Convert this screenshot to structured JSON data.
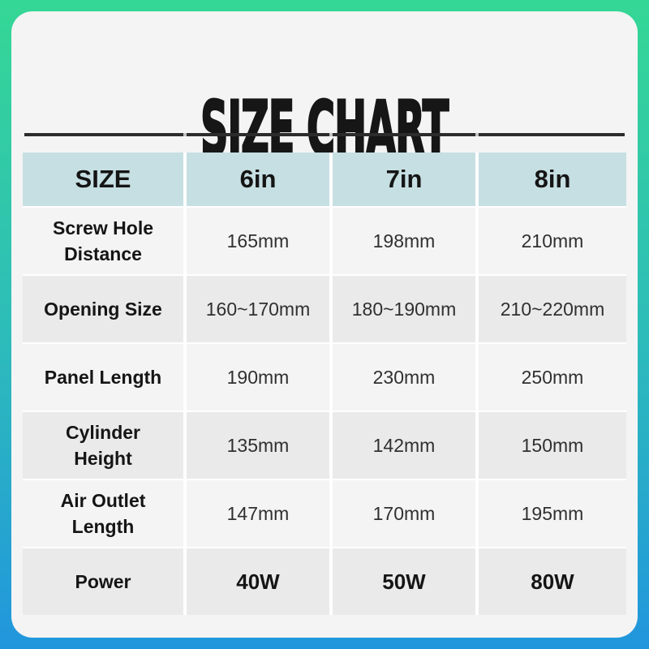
{
  "title": "SIZE CHART",
  "colors": {
    "border_top": "#35d795",
    "border_bottom": "#2196dd",
    "card_bg": "#f4f4f4",
    "header_bg": "#c6dfe2",
    "row_alt_bg": "#eaeaea",
    "divider_line": "#2c2c2c",
    "text": "#151515"
  },
  "chart_data": {
    "type": "table",
    "title": "SIZE CHART",
    "columns": [
      "SIZE",
      "6in",
      "7in",
      "8in"
    ],
    "rows": [
      {
        "label": "Screw Hole Distance",
        "values": [
          "165mm",
          "198mm",
          "210mm"
        ]
      },
      {
        "label": "Opening Size",
        "values": [
          "160~170mm",
          "180~190mm",
          "210~220mm"
        ]
      },
      {
        "label": "Panel Length",
        "values": [
          "190mm",
          "230mm",
          "250mm"
        ]
      },
      {
        "label": "Cylinder Height",
        "values": [
          "135mm",
          "142mm",
          "150mm"
        ]
      },
      {
        "label": "Air Outlet Length",
        "values": [
          "147mm",
          "170mm",
          "195mm"
        ]
      },
      {
        "label": "Power",
        "values": [
          "40W",
          "50W",
          "80W"
        ]
      }
    ]
  }
}
